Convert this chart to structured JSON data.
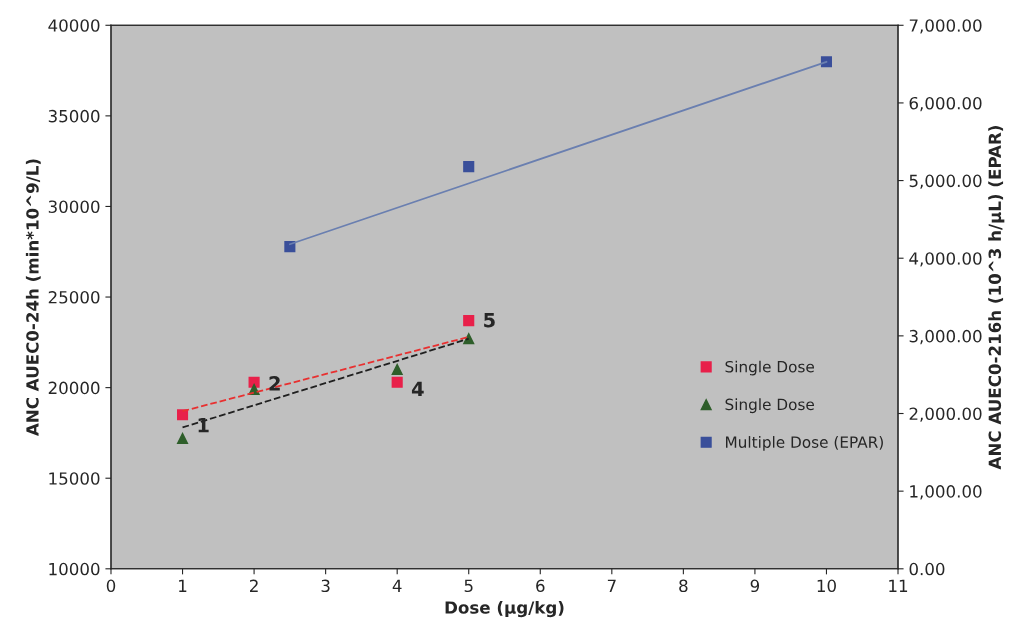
{
  "chart_data": {
    "type": "scatter",
    "xlabel": "Dose (µg/kg)",
    "ylabel": "ANC AUEC0-24h (min*10^9/L)",
    "y2label": "ANC AUEC0-216h (10^3 h/µL) (EPAR)",
    "xlim": [
      0,
      11
    ],
    "xticks": [
      0,
      1,
      2,
      3,
      4,
      5,
      6,
      7,
      8,
      9,
      10,
      11
    ],
    "ylim": [
      10000,
      40000
    ],
    "yticks": [
      10000,
      15000,
      20000,
      25000,
      30000,
      35000,
      40000
    ],
    "y2lim": [
      0,
      7000
    ],
    "y2ticks": [
      {
        "value": 0,
        "label": "0.00"
      },
      {
        "value": 1000,
        "label": "1,000.00"
      },
      {
        "value": 2000,
        "label": "2,000.00"
      },
      {
        "value": 3000,
        "label": "3,000.00"
      },
      {
        "value": 4000,
        "label": "4,000.00"
      },
      {
        "value": 5000,
        "label": "5,000.00"
      },
      {
        "value": 6000,
        "label": "6,000.00"
      },
      {
        "value": 7000,
        "label": "7,000.00"
      }
    ],
    "series": [
      {
        "name": "Single Dose",
        "color": "#e8204a",
        "marker": "square",
        "x": [
          1,
          2,
          4,
          5
        ],
        "values": [
          18500,
          20300,
          20300,
          23700
        ]
      },
      {
        "name": "Single Dose",
        "color": "#2e5e2a",
        "marker": "triangle",
        "x": [
          1,
          2,
          4,
          5
        ],
        "values": [
          17200,
          19900,
          21000,
          22700
        ]
      },
      {
        "name": "Multiple Dose (EPAR)",
        "color": "#3a4f9a",
        "marker": "square",
        "axis": "y2",
        "x": [
          2.5,
          5,
          10
        ],
        "values": [
          4150,
          5180,
          6530
        ]
      },
      {
        "type": "line",
        "color": "#e83030",
        "line_style": "dashed",
        "x": [
          1,
          5
        ],
        "values": [
          18700,
          22800
        ]
      },
      {
        "type": "line",
        "color": "#202020",
        "line_style": "dashed",
        "x": [
          1,
          5
        ],
        "values": [
          17800,
          22700
        ]
      },
      {
        "type": "line",
        "color": "#6a7fb0",
        "line_style": "solid",
        "axis": "y2",
        "x": [
          2.5,
          10
        ],
        "values": [
          4180,
          6530
        ]
      }
    ],
    "annotations": [
      {
        "text": "1",
        "x": 1,
        "y": 18000
      },
      {
        "text": "2",
        "x": 2,
        "y": 20300
      },
      {
        "text": "4",
        "x": 4,
        "y": 20000
      },
      {
        "text": "5",
        "x": 5,
        "y": 23800
      }
    ],
    "legend": "right",
    "grid": false
  }
}
